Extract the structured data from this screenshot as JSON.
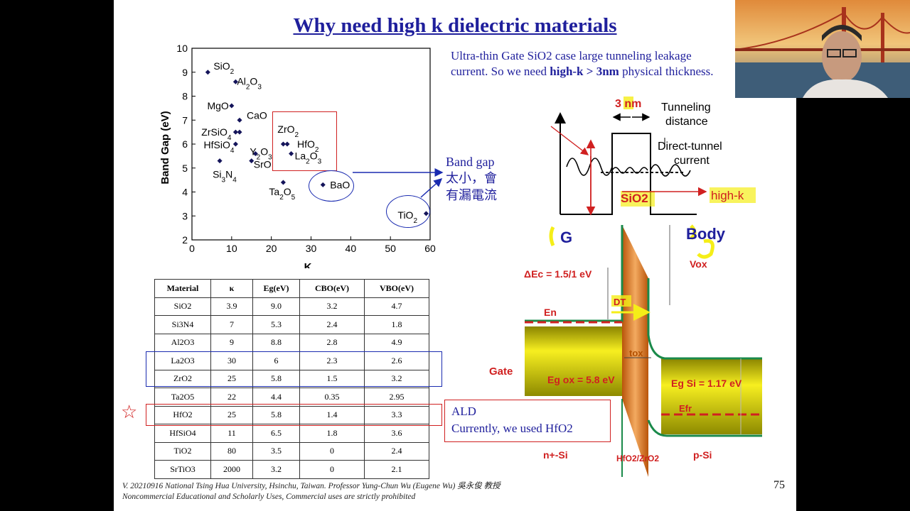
{
  "slide": {
    "title": "Why need high k dielectric materials",
    "note_line1": "Ultra-thin Gate SiO2 case large tunneling leakage",
    "note_line2_pre": "current. So we need ",
    "note_line2_bold": "high-k > 3nm",
    "note_line2_post": " physical thickness.",
    "bandgap_label_1": "Band gap",
    "bandgap_label_2": "太小，會",
    "bandgap_label_3": "有漏電流",
    "ald_line1": "ALD",
    "ald_line2": "Currently, we used HfO2",
    "footer_line1": "V. 20210916 National Tsing Hua University, Hsinchu, Taiwan. Professor Yung-Chun Wu (Eugene Wu) 吳永俊 教授",
    "footer_line2": "Noncommercial Educational and Scholarly Uses, Commercial uses are strictly prohibited",
    "page_number": "75",
    "star_icon": "star-outline-icon"
  },
  "chart_data": {
    "type": "scatter",
    "xlabel": "K",
    "ylabel": "Band Gap (eV)",
    "xlim": [
      0,
      60
    ],
    "ylim": [
      2,
      10
    ],
    "xticks": [
      0,
      10,
      20,
      30,
      40,
      50,
      60
    ],
    "yticks": [
      2,
      3,
      4,
      5,
      6,
      7,
      8,
      9,
      10
    ],
    "grid": false,
    "points": [
      {
        "label": "SiO2",
        "x": 4,
        "y": 9.0
      },
      {
        "label": "Al2O3",
        "x": 11,
        "y": 8.6
      },
      {
        "label": "MgO",
        "x": 10,
        "y": 7.6
      },
      {
        "label": "CaO",
        "x": 12,
        "y": 7.0
      },
      {
        "label": "ZrSiO4",
        "x": 11,
        "y": 6.5
      },
      {
        "label": "ZrSiO4",
        "x": 12,
        "y": 6.5
      },
      {
        "label": "HfSiO4",
        "x": 11,
        "y": 6.0
      },
      {
        "label": "Y2O3",
        "x": 16,
        "y": 5.6
      },
      {
        "label": "Si3N4",
        "x": 7,
        "y": 5.3
      },
      {
        "label": "SrO",
        "x": 15,
        "y": 5.3
      },
      {
        "label": "ZrO2",
        "x": 23,
        "y": 6.0
      },
      {
        "label": "HfO2",
        "x": 24,
        "y": 6.0
      },
      {
        "label": "La2O3",
        "x": 25,
        "y": 5.6
      },
      {
        "label": "Ta2O5",
        "x": 23,
        "y": 4.4
      },
      {
        "label": "BaO",
        "x": 33,
        "y": 4.3
      },
      {
        "label": "TiO2",
        "x": 59,
        "y": 3.1
      }
    ]
  },
  "table": {
    "headers": [
      "Material",
      "κ",
      "Eg(eV)",
      "CBO(eV)",
      "VBO(eV)"
    ],
    "rows": [
      [
        "SiO2",
        "3.9",
        "9.0",
        "3.2",
        "4.7"
      ],
      [
        "Si3N4",
        "7",
        "5.3",
        "2.4",
        "1.8"
      ],
      [
        "Al2O3",
        "9",
        "8.8",
        "2.8",
        "4.9"
      ],
      [
        "La2O3",
        "30",
        "6",
        "2.3",
        "2.6"
      ],
      [
        "ZrO2",
        "25",
        "5.8",
        "1.5",
        "3.2"
      ],
      [
        "Ta2O5",
        "22",
        "4.4",
        "0.35",
        "2.95"
      ],
      [
        "HfO2",
        "25",
        "5.8",
        "1.4",
        "3.3"
      ],
      [
        "HfSiO4",
        "11",
        "6.5",
        "1.8",
        "3.6"
      ],
      [
        "TiO2",
        "80",
        "3.5",
        "0",
        "2.4"
      ],
      [
        "SrTiO3",
        "2000",
        "3.2",
        "0",
        "2.1"
      ]
    ]
  },
  "tunnel_diagram": {
    "thickness": "3 nm",
    "tunneling_distance_1": "Tunneling",
    "tunneling_distance_2": "distance",
    "direct_tunnel_1": "Direct-tunnel",
    "direct_tunnel_2": "current",
    "sio2": "SiO2",
    "highk": "high-k"
  },
  "band_diagram": {
    "g_label": "G",
    "body_label": "Body",
    "delta_ec": "ΔEc = 1.5/1 eV",
    "vox": "Vox",
    "dt": "DT",
    "en": "En",
    "tox": "tox",
    "gate": "Gate",
    "eg_ox": "Eg ox = 5.8 eV",
    "eg_si": "Eg Si = 1.17 eV",
    "efr": "Efr",
    "n_si": "n+-Si",
    "oxide": "HfO2/ZrO2",
    "p_si": "p-Si"
  },
  "colors": {
    "title_blue": "#1f1f9c",
    "box_red": "#d02020",
    "box_blue": "#1a2bb0",
    "marker": "#14145a",
    "gate_yellow": "#c9c200",
    "oxide_orange": "#d0701a",
    "highlight_yellow": "#f5ee18"
  }
}
